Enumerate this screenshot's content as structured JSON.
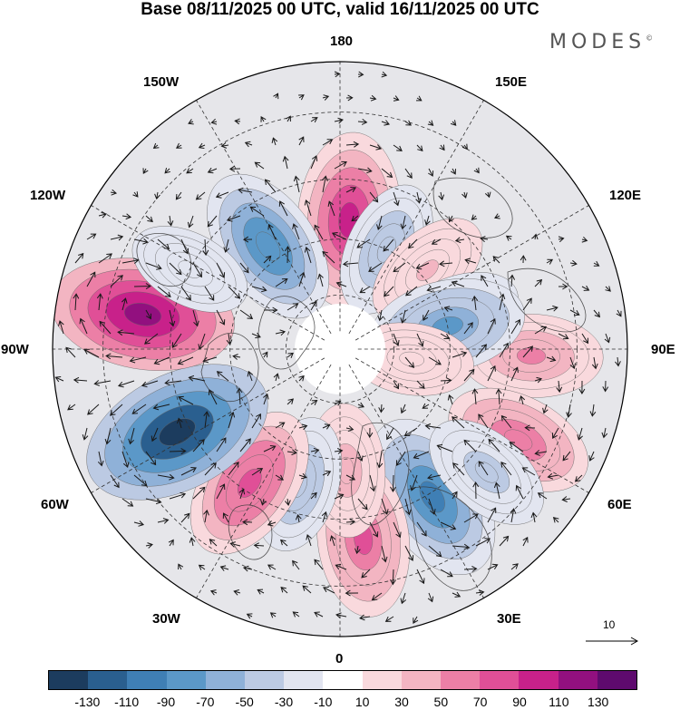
{
  "title": "Base 08/11/2025 00 UTC, valid 16/11/2025 00 UTC",
  "brand": "MODES",
  "brand_mark": "©",
  "longitude_labels": {
    "top": "180",
    "bottom": "0",
    "left": "90W",
    "right": "90E",
    "upper_left_1": "150W",
    "upper_left_2": "120W",
    "upper_right_1": "150E",
    "upper_right_2": "120E",
    "lower_left_1": "60W",
    "lower_left_2": "30W",
    "lower_right_1": "60E",
    "lower_right_2": "30E"
  },
  "vector_reference": {
    "label": "10"
  },
  "colorbar": {
    "colors": [
      "#1c3c5e",
      "#2a5f8f",
      "#3f7fb5",
      "#5b98c8",
      "#8fb1d8",
      "#bccae3",
      "#e2e5f0",
      "#ffffff",
      "#f9d9dd",
      "#f3b5c2",
      "#ec7fa6",
      "#e04f97",
      "#c8218a",
      "#92107f",
      "#5e0a6e"
    ],
    "ticks": [
      "-130",
      "-110",
      "-90",
      "-70",
      "-50",
      "-30",
      "-10",
      "10",
      "30",
      "50",
      "70",
      "90",
      "110",
      "130"
    ]
  },
  "anomaly_centers": [
    {
      "lon": 176,
      "lat": 55,
      "value": 105
    },
    {
      "lon": 155,
      "lat": 60,
      "value": -45
    },
    {
      "lon": 132,
      "lat": 58,
      "value": 35
    },
    {
      "lon": 108,
      "lat": 56,
      "value": -20
    },
    {
      "lon": 88,
      "lat": 40,
      "value": 55
    },
    {
      "lon": 102,
      "lat": 60,
      "value": -75
    },
    {
      "lon": 63,
      "lat": 38,
      "value": 65
    },
    {
      "lon": 32,
      "lat": 44,
      "value": -100
    },
    {
      "lon": 7,
      "lat": 40,
      "value": 75
    },
    {
      "lon": 3,
      "lat": 57,
      "value": 40
    },
    {
      "lon": -17,
      "lat": 52,
      "value": -45
    },
    {
      "lon": -34,
      "lat": 47,
      "value": 80
    },
    {
      "lon": -63,
      "lat": 42,
      "value": -135
    },
    {
      "lon": -100,
      "lat": 38,
      "value": 120
    },
    {
      "lon": -145,
      "lat": 56,
      "value": -85
    },
    {
      "lon": -118,
      "lat": 45,
      "value": -25
    },
    {
      "lon": 50,
      "lat": 40,
      "value": -40
    },
    {
      "lon": 82,
      "lat": 70,
      "value": 25
    }
  ]
}
